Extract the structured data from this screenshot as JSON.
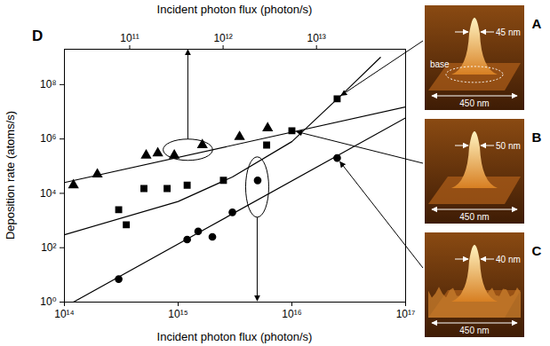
{
  "chart_data": {
    "type": "scatter",
    "panel_label": "D",
    "x_label": "Incident photon flux (photon/s)",
    "x2_label": "Incident photon flux (photon/s)",
    "y_label": "Deposition rate (atoms/s)",
    "log": true,
    "grid": false,
    "xlim": [
      100000000000000.0,
      1e+17
    ],
    "xticks": [
      {
        "value": 100000000000000.0,
        "label": "10¹⁴"
      },
      {
        "value": 1000000000000000.0,
        "label": "10¹⁵"
      },
      {
        "value": 1e+16,
        "label": "10¹⁶"
      },
      {
        "value": 1e+17,
        "label": "10¹⁷"
      }
    ],
    "x2lim": [
      20000000000.0,
      90000000000000.0
    ],
    "x2ticks": [
      {
        "value": 100000000000.0,
        "label": "10¹¹"
      },
      {
        "value": 1000000000000.0,
        "label": "10¹²"
      },
      {
        "value": 10000000000000.0,
        "label": "10¹³"
      }
    ],
    "ylim": [
      1,
      2000000000.0
    ],
    "yticks": [
      {
        "value": 1,
        "label": "10⁰"
      },
      {
        "value": 100,
        "label": "10²"
      },
      {
        "value": 10000,
        "label": "10⁴"
      },
      {
        "value": 1000000,
        "label": "10⁶"
      },
      {
        "value": 100000000,
        "label": "10⁸"
      }
    ],
    "series": [
      {
        "marker": "circle",
        "color": "#000000",
        "x": [
          300000000000000.0,
          1200000000000000.0,
          1500000000000000.0,
          2000000000000000.0,
          3000000000000000.0,
          5000000000000000.0,
          2.5e+16
        ],
        "values": [
          7,
          200,
          400,
          250,
          2000,
          30000,
          200000
        ],
        "fit": {
          "x": [
            120000000000000.0,
            1e+17
          ],
          "values": [
            1,
            6000000
          ]
        }
      },
      {
        "marker": "square",
        "color": "#000000",
        "x": [
          300000000000000.0,
          350000000000000.0,
          500000000000000.0,
          800000000000000.0,
          1200000000000000.0,
          2500000000000000.0,
          6000000000000000.0,
          1e+16,
          2.5e+16
        ],
        "values": [
          2500,
          700,
          15000,
          15000,
          20000,
          30000,
          600000,
          2000000,
          30000000
        ],
        "fit": {
          "x": [
            100000000000000.0,
            1000000000000000.0,
            3000000000000000.0,
            1e+16,
            3e+16,
            6e+16
          ],
          "values": [
            300,
            5000,
            40000,
            800000,
            60000000,
            1000000000
          ]
        }
      },
      {
        "marker": "triangle",
        "color": "#000000",
        "axis": "x2",
        "x": [
          25000000000.0,
          45000000000.0,
          150000000000.0,
          200000000000.0,
          300000000000.0,
          600000000000.0,
          1500000000000.0,
          3000000000000.0
        ],
        "values": [
          20000,
          50000,
          250000,
          300000,
          250000,
          600000,
          1200000,
          2500000
        ],
        "fit": {
          "x": [
            20000000000.0,
            90000000000000.0
          ],
          "values": [
            25000,
            15000000
          ]
        }
      }
    ]
  },
  "images": [
    {
      "letter": "A",
      "width_label": "45 nm",
      "scale_label": "450 nm",
      "base_label": "base"
    },
    {
      "letter": "B",
      "width_label": "50 nm",
      "scale_label": "450 nm"
    },
    {
      "letter": "C",
      "width_label": "40 nm",
      "scale_label": "450 nm"
    }
  ]
}
